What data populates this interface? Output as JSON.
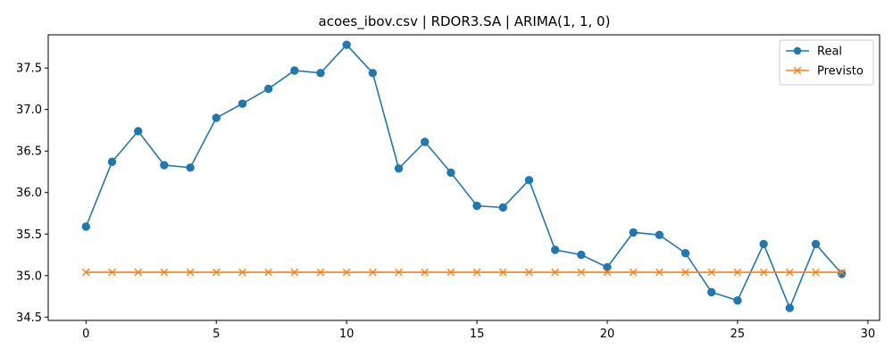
{
  "chart_data": {
    "type": "line",
    "title": "acoes_ibov.csv | RDOR3.SA | ARIMA(1, 1, 0)",
    "xlabel": "",
    "ylabel": "",
    "xlim": [
      -1.45,
      30.45
    ],
    "ylim": [
      34.46,
      37.9
    ],
    "x_ticks": [
      0,
      5,
      10,
      15,
      20,
      25,
      30
    ],
    "y_ticks": [
      34.5,
      35.0,
      35.5,
      36.0,
      36.5,
      37.0,
      37.5
    ],
    "x_tick_labels": [
      "0",
      "5",
      "10",
      "15",
      "20",
      "25",
      "30"
    ],
    "y_tick_labels": [
      "34.5",
      "35.0",
      "35.5",
      "36.0",
      "36.5",
      "37.0",
      "37.5"
    ],
    "grid": false,
    "legend_position": "top-right",
    "x": [
      0,
      1,
      2,
      3,
      4,
      5,
      6,
      7,
      8,
      9,
      10,
      11,
      12,
      13,
      14,
      15,
      16,
      17,
      18,
      19,
      20,
      21,
      22,
      23,
      24,
      25,
      26,
      27,
      28,
      29
    ],
    "series": [
      {
        "name": "Real",
        "color": "#1f77b4",
        "marker": "circle",
        "values": [
          35.59,
          36.37,
          36.74,
          36.33,
          36.3,
          36.9,
          37.07,
          37.25,
          37.47,
          37.44,
          37.78,
          37.44,
          36.29,
          36.61,
          36.24,
          35.84,
          35.82,
          36.15,
          35.31,
          35.25,
          35.1,
          35.52,
          35.49,
          35.27,
          34.8,
          34.7,
          35.38,
          34.61,
          35.38,
          35.02
        ]
      },
      {
        "name": "Previsto",
        "color": "#ff7f0e",
        "marker": "x",
        "values": [
          35.04,
          35.04,
          35.04,
          35.04,
          35.04,
          35.04,
          35.04,
          35.04,
          35.04,
          35.04,
          35.04,
          35.04,
          35.04,
          35.04,
          35.04,
          35.04,
          35.04,
          35.04,
          35.04,
          35.04,
          35.04,
          35.04,
          35.04,
          35.04,
          35.04,
          35.04,
          35.04,
          35.04,
          35.04,
          35.04
        ]
      }
    ]
  }
}
